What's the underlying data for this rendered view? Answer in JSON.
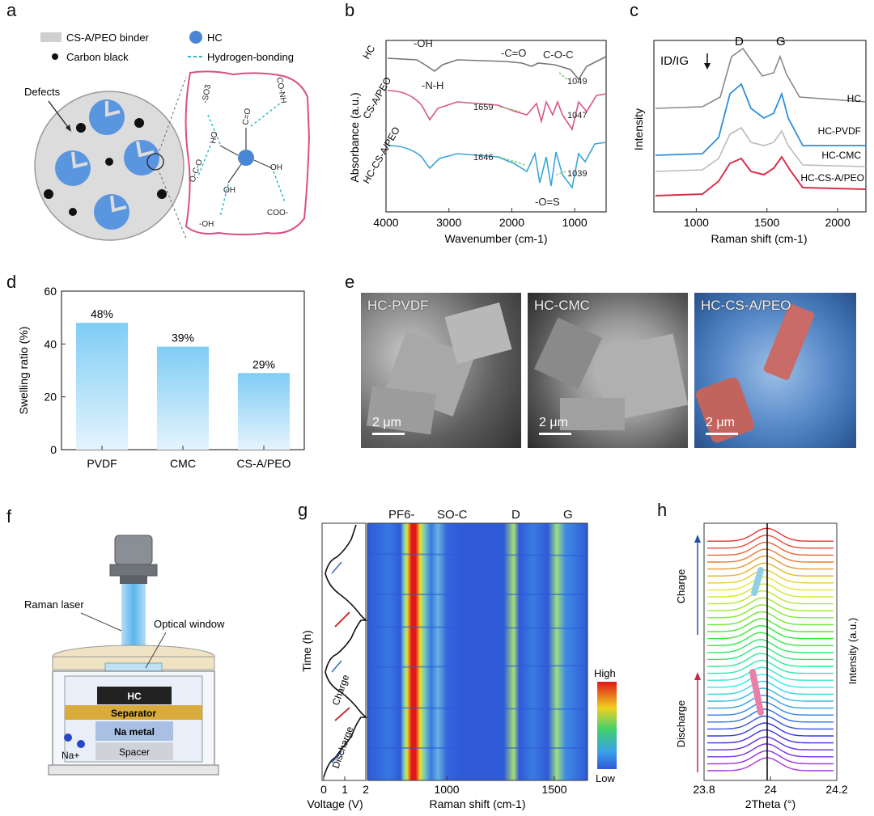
{
  "panel_labels": [
    "a",
    "b",
    "c",
    "d",
    "e",
    "f",
    "g",
    "h"
  ],
  "panel_a": {
    "legend": [
      {
        "label": "CS-A/PEO binder",
        "color": "#cfcfcf"
      },
      {
        "label": "HC",
        "color": "#4a86d6"
      },
      {
        "label": "Carbon black",
        "color": "#111111"
      },
      {
        "label": "Hydrogen-bonding",
        "color": "#30b8c8"
      }
    ],
    "defects_label": "Defects",
    "chem_labels": [
      "-SO3",
      "CO-NH",
      "C=O",
      "HO",
      "OH",
      "OH",
      "COO-",
      "-OH",
      "O-C-O"
    ]
  },
  "chart_data": [
    {
      "type": "line",
      "panel": "b",
      "xlabel": "Wavenumber (cm-1)",
      "ylabel": "Absorbance (a.u.)",
      "xlim": [
        4000,
        500
      ],
      "xticks": [
        "4000",
        "3000",
        "2000",
        "1000"
      ],
      "series": [
        {
          "name": "HC",
          "color": "#777777"
        },
        {
          "name": "CS-A/PEO",
          "color": "#d9558a"
        },
        {
          "name": "HC-CS-A/PEO",
          "color": "#3aa6d8"
        }
      ],
      "annotations": [
        "-OH",
        "-N-H",
        "-C=O",
        "C-O-C",
        "-O=S",
        "1049",
        "1047",
        "1039",
        "1659",
        "1646"
      ]
    },
    {
      "type": "line",
      "panel": "c",
      "xlabel": "Raman shift (cm-1)",
      "ylabel": "Intensity",
      "xlim": [
        700,
        2200
      ],
      "xticks": [
        "1000",
        "1500",
        "2000"
      ],
      "series": [
        {
          "name": "HC",
          "color": "#888888"
        },
        {
          "name": "HC-PVDF",
          "color": "#2e8fdb"
        },
        {
          "name": "HC-CMC",
          "color": "#bbbbbb"
        },
        {
          "name": "HC-CS-A/PEO",
          "color": "#d8324e"
        }
      ],
      "annotations": [
        "D",
        "G",
        "ID/IG"
      ]
    },
    {
      "type": "bar",
      "panel": "d",
      "categories": [
        "PVDF",
        "CMC",
        "CS-A/PEO"
      ],
      "values": [
        48,
        39,
        29
      ],
      "value_labels": [
        "48%",
        "39%",
        "29%"
      ],
      "ylabel": "Swelling ratio (%)",
      "ylim": [
        0,
        60
      ],
      "yticks": [
        "0",
        "20",
        "40",
        "60"
      ]
    },
    {
      "type": "heatmap",
      "panel": "g",
      "xlabel": "Raman shift (cm-1)",
      "xticks": [
        "1000",
        "1500"
      ],
      "ylabel": "Time (h)",
      "left_xlabel": "Voltage (V)",
      "left_xticks": [
        "0",
        "1",
        "2"
      ],
      "band_labels": [
        "PF6-",
        "SO-C",
        "D",
        "G"
      ],
      "colorbar": [
        "High",
        "Low"
      ],
      "segment_labels": [
        "Charge",
        "Discharge"
      ]
    },
    {
      "type": "line",
      "panel": "h",
      "xlabel": "2Theta (°)",
      "ylabel": "Intensity (a.u.)",
      "xlim": [
        23.8,
        24.2
      ],
      "xticks": [
        "23.8",
        "24",
        "24.2"
      ],
      "side_labels": [
        "Charge",
        "Discharge"
      ]
    }
  ],
  "panel_e": {
    "images": [
      {
        "label": "HC-PVDF",
        "scale": "2 μm"
      },
      {
        "label": "HC-CMC",
        "scale": "2 μm"
      },
      {
        "label": "HC-CS-A/PEO",
        "scale": "2 μm"
      }
    ]
  },
  "panel_f": {
    "labels": {
      "raman_laser": "Raman laser",
      "optical_window": "Optical window",
      "hc": "HC",
      "separator": "Separator",
      "na_metal": "Na metal",
      "spacer": "Spacer",
      "na_ion": "Na+"
    }
  }
}
